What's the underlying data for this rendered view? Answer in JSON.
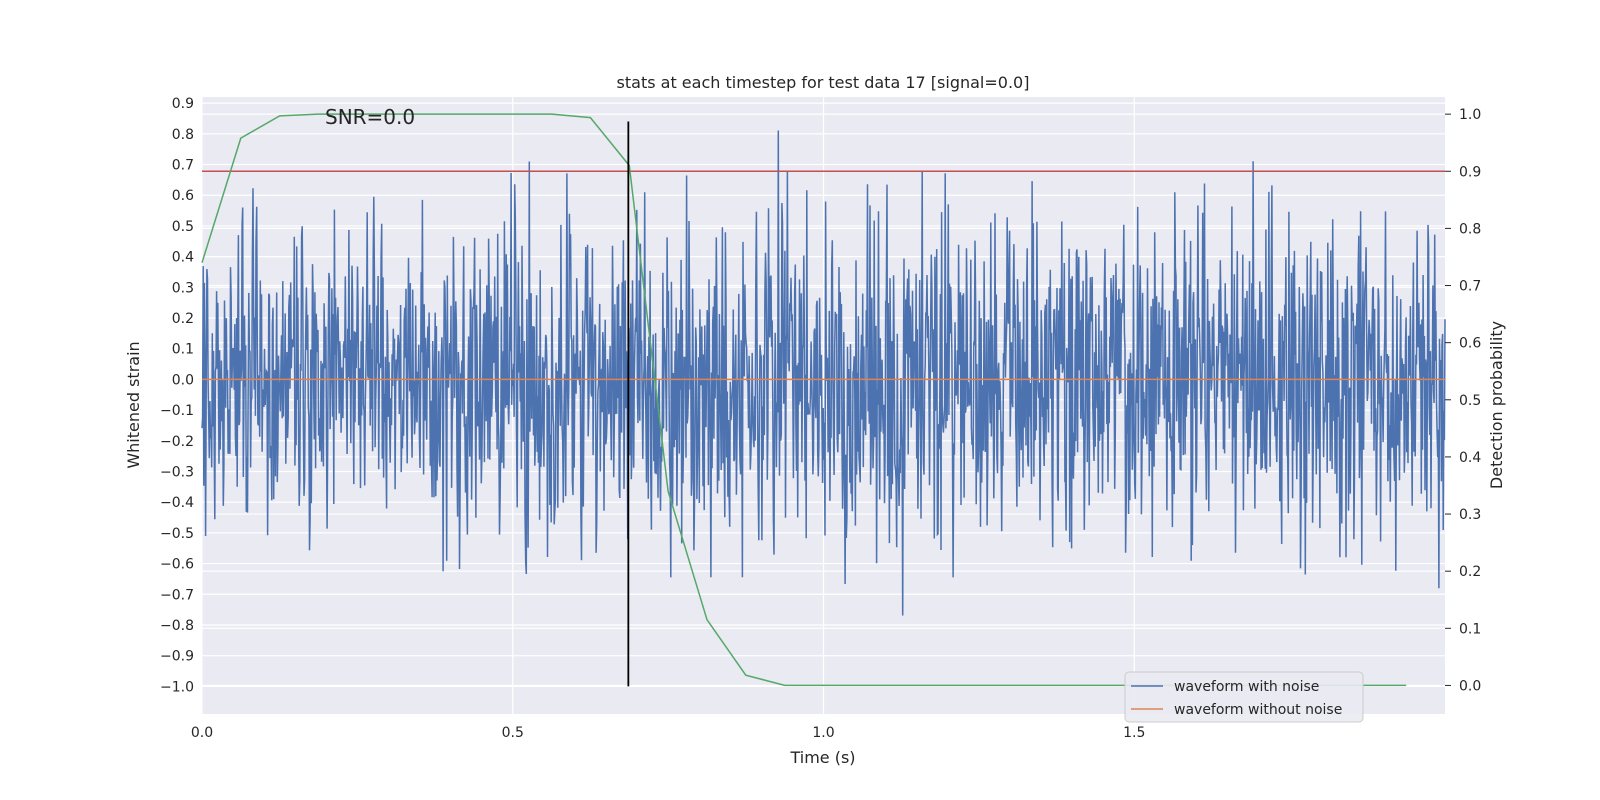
{
  "chart_data": {
    "type": "line",
    "title": "stats at each timestep for test data 17 [signal=0.0]",
    "xlabel": "Time (s)",
    "ylabel": "Whitened strain",
    "y2label": "Detection probability",
    "xlim": [
      0.0,
      2.0
    ],
    "ylim": [
      -1.09,
      0.92
    ],
    "y2lim": [
      -0.05,
      1.03
    ],
    "x_ticks": [
      0.0,
      0.5,
      1.0,
      1.5
    ],
    "x_tick_labels": [
      "0.0",
      "0.5",
      "1.0",
      "1.5"
    ],
    "y_ticks": [
      0.9,
      0.8,
      0.7,
      0.6,
      0.5,
      0.4,
      0.3,
      0.2,
      0.1,
      0.0,
      -0.1,
      -0.2,
      -0.3,
      -0.4,
      -0.5,
      -0.6,
      -0.7,
      -0.8,
      -0.9,
      -1.0
    ],
    "y_tick_labels": [
      "0.9",
      "0.8",
      "0.7",
      "0.6",
      "0.5",
      "0.4",
      "0.3",
      "0.2",
      "0.1",
      "0.0",
      "−0.1",
      "−0.2",
      "−0.3",
      "−0.4",
      "−0.5",
      "−0.6",
      "−0.7",
      "−0.8",
      "−0.9",
      "−1.0"
    ],
    "y2_ticks": [
      1.0,
      0.9,
      0.8,
      0.7,
      0.6,
      0.5,
      0.4,
      0.3,
      0.2,
      0.1,
      0.0
    ],
    "y2_tick_labels": [
      "1.0",
      "0.9",
      "0.8",
      "0.7",
      "0.6",
      "0.5",
      "0.4",
      "0.3",
      "0.2",
      "0.1",
      "0.0"
    ],
    "grid": true,
    "legend": {
      "placement": "lower-right",
      "entries": [
        "waveform with noise",
        "waveform without noise"
      ]
    },
    "annotations": [
      {
        "text": "SNR=0.0",
        "x": 0.2,
        "y": 0.84
      }
    ],
    "series": [
      {
        "name": "waveform with noise",
        "color": "#4c72b0",
        "kind": "noise",
        "x_range": [
          0.0,
          2.0
        ],
        "std": 0.26,
        "seed": 17,
        "clip": [
          -0.98,
          0.84
        ]
      },
      {
        "name": "waveform without noise",
        "color": "#dd8452",
        "x": [
          0.0,
          2.0
        ],
        "y": [
          0.0,
          0.0
        ]
      },
      {
        "name": "Detection probability",
        "axis": "right",
        "color": "#55a868",
        "x": [
          0.0,
          0.0625,
          0.125,
          0.1875,
          0.25,
          0.3125,
          0.375,
          0.4375,
          0.5,
          0.5625,
          0.625,
          0.6875,
          0.75,
          0.8125,
          0.875,
          0.9375,
          1.0,
          1.0625,
          1.125,
          1.1875,
          1.25,
          1.3125,
          1.375,
          1.4375,
          1.5,
          1.5625,
          1.625,
          1.6875,
          1.75,
          1.8125,
          1.875,
          1.9375
        ],
        "y": [
          0.74,
          0.958,
          0.997,
          1.0,
          1.0,
          1.0,
          1.0,
          1.0,
          1.0,
          1.0,
          0.994,
          0.91,
          0.34,
          0.115,
          0.018,
          0.0,
          0.0,
          0.0,
          0.0,
          0.0,
          0.0,
          0.0,
          0.0,
          0.0,
          0.0,
          0.0,
          0.0,
          0.0,
          0.0,
          0.0,
          0.0,
          0.0
        ]
      }
    ],
    "threshold": {
      "axis": "right",
      "value": 0.9,
      "color": "#c44e52"
    },
    "vline": {
      "x": 0.686,
      "y_from": -1.0,
      "y_to": 0.84,
      "color": "#000000"
    }
  }
}
